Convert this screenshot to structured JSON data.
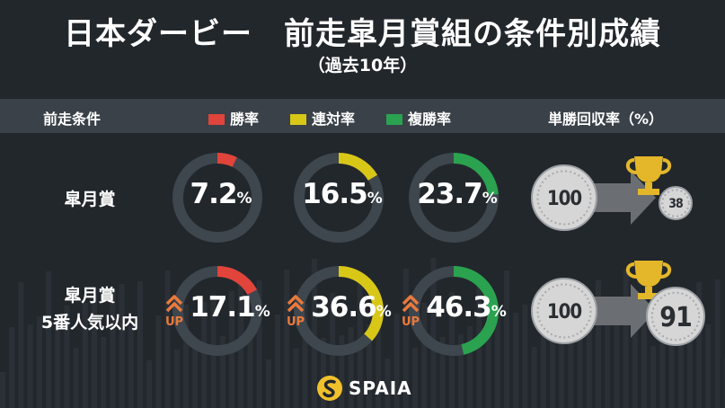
{
  "title": "日本ダービー　前走皐月賞組の条件別成績",
  "subtitle": "（過去10年）",
  "header": {
    "condition": "前走条件",
    "win_label": "勝率",
    "place2_label": "連対率",
    "place3_label": "複勝率",
    "return_label": "単勝回収率（%）"
  },
  "colors": {
    "win": "#e0443b",
    "place2": "#d9c718",
    "place3": "#2aa24f",
    "track": "#3e464e",
    "up": "#ea7a3c",
    "coin": "#d6d6d6",
    "trophy": "#e4b72a",
    "arrow": "#6b6e72"
  },
  "rows": [
    {
      "label_line1": "皐月賞",
      "label_line2": "",
      "win": "7.2",
      "place2": "16.5",
      "place3": "23.7",
      "show_up": false,
      "up_text": "",
      "bet": "100",
      "return": "38"
    },
    {
      "label_line1": "皐月賞",
      "label_line2": "5番人気以内",
      "win": "17.1",
      "place2": "36.6",
      "place3": "46.3",
      "show_up": true,
      "up_text": "UP",
      "bet": "100",
      "return": "91"
    }
  ],
  "percent_sign": "%",
  "logo_text": "SPAIA",
  "chart_data": {
    "type": "pie",
    "title": "日本ダービー　前走皐月賞組の条件別成績",
    "subtitle": "（過去10年）",
    "categories": [
      "皐月賞",
      "皐月賞 5番人気以内"
    ],
    "series": [
      {
        "name": "勝率",
        "values": [
          7.2,
          17.1
        ]
      },
      {
        "name": "連対率",
        "values": [
          16.5,
          36.6
        ]
      },
      {
        "name": "複勝率",
        "values": [
          23.7,
          46.3
        ]
      },
      {
        "name": "単勝回収率（%）",
        "values": [
          38,
          91
        ]
      }
    ],
    "legend": "top"
  }
}
